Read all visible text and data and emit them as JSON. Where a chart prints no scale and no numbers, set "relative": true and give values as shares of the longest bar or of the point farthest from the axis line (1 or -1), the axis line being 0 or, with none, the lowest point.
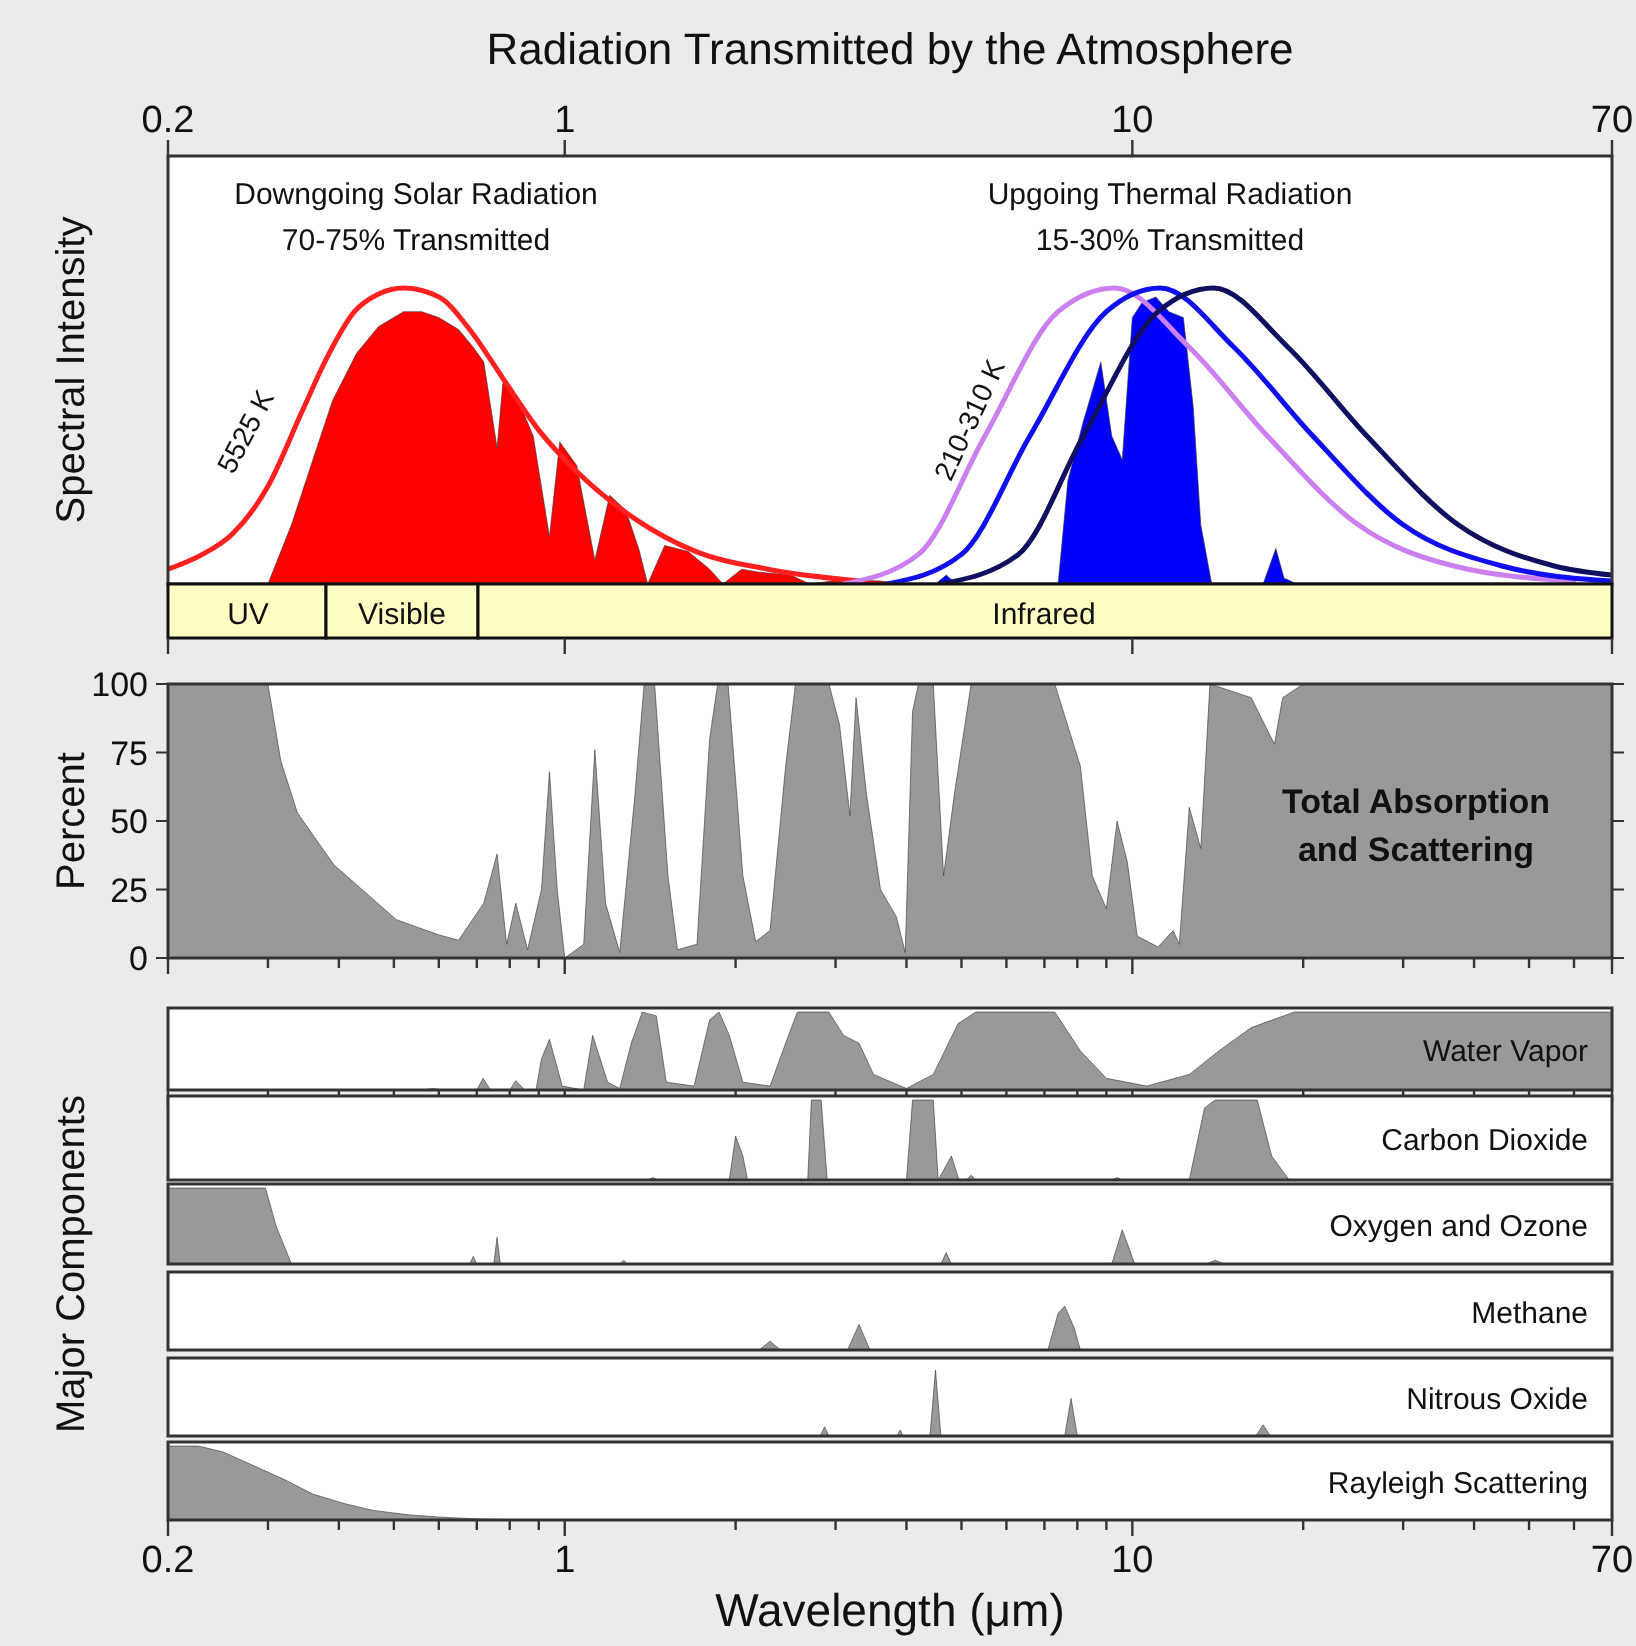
{
  "chart_data": [
    {
      "type": "area",
      "title": "Radiation Transmitted by the Atmosphere",
      "ylabel": "Spectral Intensity",
      "relative": true,
      "log": "x",
      "xlim": [
        0.2,
        70
      ],
      "tick_labels": "x",
      "xticks": [
        0.2,
        1,
        10,
        70
      ],
      "annotations": [
        "Downgoing Solar Radiation",
        "70-75% Transmitted",
        "Upgoing Thermal Radiation",
        "15-30% Transmitted",
        "5525 K",
        "210-310 K",
        "UV",
        "Visible",
        "Infrared"
      ],
      "series": [
        {
          "type": "area",
          "color": "#ff0000",
          "x": [
            0.3,
            0.33,
            0.36,
            0.39,
            0.43,
            0.47,
            0.52,
            0.56,
            0.6,
            0.65,
            0.69,
            0.72,
            0.76,
            0.78,
            0.82,
            0.88,
            0.94,
            0.98,
            1.05,
            1.13,
            1.2,
            1.28,
            1.35,
            1.4,
            1.5,
            1.65,
            1.8,
            1.9,
            2.05,
            2.2,
            2.5,
            2.7,
            3.1,
            3.6,
            4.0
          ],
          "values": [
            0,
            0.2,
            0.42,
            0.62,
            0.78,
            0.87,
            0.92,
            0.92,
            0.9,
            0.86,
            0.8,
            0.75,
            0.46,
            0.7,
            0.64,
            0.5,
            0.16,
            0.48,
            0.4,
            0.08,
            0.3,
            0.25,
            0.12,
            0,
            0.13,
            0.11,
            0.05,
            0,
            0.05,
            0.04,
            0.03,
            0,
            0.015,
            0.01,
            0
          ]
        },
        {
          "type": "line",
          "color": "#ff2020",
          "x": [
            0.2,
            0.23,
            0.26,
            0.3,
            0.344,
            0.38,
            0.426,
            0.47,
            0.52,
            0.6,
            0.68,
            0.775,
            0.9,
            1.05,
            1.33,
            1.7,
            2.28,
            3.3
          ],
          "values": [
            0.05,
            0.1,
            0.17,
            0.33,
            0.58,
            0.76,
            0.92,
            0.98,
            1.0,
            0.97,
            0.86,
            0.7,
            0.52,
            0.38,
            0.22,
            0.11,
            0.05,
            0.01
          ]
        },
        {
          "type": "area",
          "color": "#0000ff",
          "x": [
            4.5,
            4.7,
            4.9,
            7.4,
            7.7,
            8.2,
            8.8,
            9.2,
            9.6,
            10.0,
            10.4,
            11.0,
            11.6,
            12.3,
            12.8,
            13.2,
            13.8,
            17.0,
            17.9,
            18.5,
            19.5
          ],
          "values": [
            0,
            0.03,
            0,
            0,
            0.35,
            0.55,
            0.75,
            0.5,
            0.42,
            0.9,
            0.95,
            0.97,
            0.92,
            0.9,
            0.6,
            0.2,
            0,
            0,
            0.12,
            0.02,
            0
          ]
        },
        {
          "type": "line",
          "color": "#cc80f0",
          "x": [
            3.1,
            4.2,
            5.5,
            7.4,
            9.3,
            12.6,
            17.3,
            25,
            37,
            60
          ],
          "values": [
            0,
            0.1,
            0.5,
            0.92,
            1,
            0.8,
            0.5,
            0.2,
            0.06,
            0.01
          ]
        },
        {
          "type": "line",
          "color": "#1010ee",
          "x": [
            3.7,
            5,
            6.6,
            9,
            11.2,
            15.1,
            20.8,
            30,
            45,
            70
          ],
          "values": [
            0,
            0.1,
            0.5,
            0.92,
            1,
            0.8,
            0.5,
            0.2,
            0.06,
            0.01
          ]
        },
        {
          "type": "line",
          "color": "#101060",
          "x": [
            4.6,
            6.3,
            8.2,
            11.1,
            13.9,
            18.8,
            25.9,
            37.5,
            55.6,
            70
          ],
          "values": [
            0,
            0.1,
            0.5,
            0.92,
            1,
            0.8,
            0.5,
            0.2,
            0.06,
            0.03
          ]
        }
      ]
    },
    {
      "type": "area",
      "ylabel": "Percent",
      "log": "x",
      "xlim": [
        0.2,
        70
      ],
      "tick_labels": "y",
      "ylim": [
        0,
        100
      ],
      "yticks": [
        0,
        25,
        50,
        75,
        100
      ],
      "color": "#999999",
      "xticks": [
        0.2,
        {
          "value": 0.3,
          "label": null
        },
        {
          "value": 0.4,
          "label": null
        },
        {
          "value": 0.5,
          "label": null
        },
        {
          "value": 0.6,
          "label": null
        },
        {
          "value": 0.7,
          "label": null
        },
        {
          "value": 0.8,
          "label": null
        },
        {
          "value": 0.9,
          "label": null
        },
        1,
        {
          "value": 2,
          "label": null
        },
        {
          "value": 3,
          "label": null
        },
        {
          "value": 4,
          "label": null
        },
        {
          "value": 5,
          "label": null
        },
        {
          "value": 6,
          "label": null
        },
        {
          "value": 7,
          "label": null
        },
        {
          "value": 8,
          "label": null
        },
        {
          "value": 9,
          "label": null
        },
        10,
        {
          "value": 20,
          "label": null
        },
        {
          "value": 30,
          "label": null
        },
        {
          "value": 40,
          "label": null
        },
        {
          "value": 50,
          "label": null
        },
        {
          "value": 60,
          "label": null
        },
        70
      ],
      "annotations": [
        "Total Absorption and Scattering"
      ],
      "x": [
        0.2,
        0.3,
        0.316,
        0.338,
        0.392,
        0.505,
        0.599,
        0.65,
        0.72,
        0.76,
        0.79,
        0.82,
        0.86,
        0.91,
        0.94,
        0.97,
        1.0,
        1.08,
        1.13,
        1.18,
        1.25,
        1.33,
        1.38,
        1.44,
        1.52,
        1.58,
        1.71,
        1.8,
        1.86,
        1.94,
        2.0,
        2.06,
        2.17,
        2.3,
        2.45,
        2.55,
        2.92,
        3.05,
        3.18,
        3.26,
        3.4,
        3.6,
        3.84,
        3.98,
        4.1,
        4.2,
        4.46,
        4.65,
        4.86,
        5.2,
        7.3,
        8.1,
        8.5,
        9.0,
        9.4,
        9.8,
        10.2,
        11.1,
        11.8,
        12.1,
        12.6,
        13.2,
        13.7,
        16.2,
        17.8,
        18.4,
        20,
        70
      ],
      "values": [
        100,
        100,
        72,
        53,
        34,
        14,
        8.5,
        6.5,
        20,
        38,
        5,
        20,
        3,
        25,
        68,
        25,
        0,
        5,
        76,
        20,
        2,
        60,
        100,
        100,
        30,
        3,
        5,
        80,
        100,
        100,
        65,
        30,
        6,
        10,
        70,
        100,
        100,
        85,
        52,
        95,
        60,
        25,
        15,
        2,
        90,
        100,
        100,
        30,
        60,
        100,
        100,
        70,
        30,
        18,
        50,
        35,
        8,
        4,
        10,
        5,
        55,
        40,
        100,
        95,
        78,
        95,
        100,
        100
      ]
    },
    {
      "type": "area",
      "ylabel": "Major Components",
      "relative": true,
      "log": "x",
      "xlim": [
        0.2,
        70
      ],
      "tick_labels": false,
      "xticks": [
        0.2,
        {
          "value": 0.3,
          "label": null
        },
        {
          "value": 0.4,
          "label": null
        },
        {
          "value": 0.5,
          "label": null
        },
        {
          "value": 0.6,
          "label": null
        },
        {
          "value": 0.7,
          "label": null
        },
        {
          "value": 0.8,
          "label": null
        },
        {
          "value": 0.9,
          "label": null
        },
        1,
        {
          "value": 2,
          "label": null
        },
        {
          "value": 3,
          "label": null
        },
        {
          "value": 4,
          "label": null
        },
        {
          "value": 5,
          "label": null
        },
        {
          "value": 6,
          "label": null
        },
        {
          "value": 7,
          "label": null
        },
        {
          "value": 8,
          "label": null
        },
        {
          "value": 9,
          "label": null
        },
        10,
        {
          "value": 20,
          "label": null
        },
        {
          "value": 30,
          "label": null
        },
        {
          "value": 40,
          "label": null
        },
        {
          "value": 50,
          "label": null
        },
        {
          "value": 60,
          "label": null
        },
        70
      ],
      "series": [
        {
          "name": "Water Vapor",
          "color": "#999999",
          "x": [
            0.2,
            0.56,
            0.586,
            0.61,
            0.7,
            0.718,
            0.74,
            0.8,
            0.82,
            0.85,
            0.89,
            0.91,
            0.94,
            0.99,
            1.08,
            1.12,
            1.19,
            1.25,
            1.31,
            1.37,
            1.45,
            1.51,
            1.69,
            1.8,
            1.87,
            1.95,
            2.06,
            2.3,
            2.45,
            2.57,
            2.92,
            3.1,
            3.3,
            3.5,
            4.0,
            4.46,
            4.93,
            5.3,
            7.3,
            8.1,
            9.0,
            10.6,
            12.6,
            14.2,
            16.2,
            19.3,
            70
          ],
          "values": [
            0,
            0,
            0.02,
            0,
            0,
            0.15,
            0,
            0,
            0.12,
            0,
            0,
            0.4,
            0.65,
            0.05,
            0,
            0.7,
            0.1,
            0.02,
            0.6,
            1,
            0.95,
            0.1,
            0.05,
            0.9,
            1,
            0.7,
            0.1,
            0.05,
            0.6,
            1,
            1,
            0.7,
            0.6,
            0.2,
            0.02,
            0.2,
            0.85,
            1,
            1,
            0.5,
            0.15,
            0.05,
            0.2,
            0.5,
            0.8,
            1,
            1
          ]
        }
      ]
    },
    {
      "type": "area",
      "relative": true,
      "log": "x",
      "xlim": [
        0.2,
        70
      ],
      "tick_labels": false,
      "series": [
        {
          "name": "Carbon Dioxide",
          "color": "#999999",
          "x": [
            0.2,
            1.4,
            1.43,
            1.46,
            1.95,
            2.0,
            2.06,
            2.1,
            2.68,
            2.72,
            2.83,
            2.9,
            4.0,
            4.1,
            4.46,
            4.55,
            4.8,
            4.95,
            5.1,
            5.2,
            5.3,
            9.2,
            9.4,
            9.6,
            12.6,
            13.4,
            14.0,
            16.6,
            17.6,
            18.9,
            70
          ],
          "values": [
            0,
            0,
            0.03,
            0,
            0,
            0.55,
            0.3,
            0,
            0,
            1,
            1,
            0,
            0,
            1,
            1,
            0,
            0.3,
            0,
            0,
            0.06,
            0,
            0,
            0.03,
            0,
            0,
            0.9,
            1,
            1,
            0.3,
            0,
            0
          ]
        }
      ]
    },
    {
      "type": "area",
      "relative": true,
      "log": "x",
      "xlim": [
        0.2,
        70
      ],
      "tick_labels": false,
      "series": [
        {
          "name": "Oxygen and Ozone",
          "color": "#999999",
          "x": [
            0.2,
            0.297,
            0.31,
            0.33,
            0.68,
            0.69,
            0.7,
            0.75,
            0.76,
            0.77,
            1.25,
            1.27,
            1.29,
            4.6,
            4.7,
            4.8,
            9.2,
            9.6,
            10.1,
            13.5,
            14.0,
            14.5,
            70
          ],
          "values": [
            1,
            1,
            0.5,
            0,
            0,
            0.1,
            0,
            0,
            0.35,
            0,
            0,
            0.05,
            0,
            0,
            0.15,
            0,
            0,
            0.45,
            0,
            0,
            0.05,
            0,
            0
          ]
        }
      ]
    },
    {
      "type": "area",
      "relative": true,
      "log": "x",
      "xlim": [
        0.2,
        70
      ],
      "tick_labels": false,
      "series": [
        {
          "name": "Methane",
          "color": "#999999",
          "x": [
            0.2,
            2.2,
            2.3,
            2.4,
            3.15,
            3.3,
            3.45,
            7.1,
            7.4,
            7.6,
            7.9,
            8.1,
            70
          ],
          "values": [
            0,
            0,
            0.2,
            0,
            0,
            0.58,
            0,
            0,
            0.83,
            1,
            0.5,
            0,
            0
          ]
        }
      ]
    },
    {
      "type": "area",
      "relative": true,
      "log": "x",
      "xlim": [
        0.2,
        70
      ],
      "tick_labels": false,
      "series": [
        {
          "name": "Nitrous Oxide",
          "color": "#999999",
          "x": [
            0.2,
            2.82,
            2.87,
            2.92,
            3.85,
            3.9,
            3.95,
            4.4,
            4.5,
            4.6,
            7.6,
            7.8,
            8.0,
            16.5,
            17.0,
            17.5,
            70
          ],
          "values": [
            0,
            0,
            0.14,
            0,
            0,
            0.09,
            0,
            0,
            1,
            0,
            0,
            0.57,
            0,
            0,
            0.17,
            0,
            0
          ]
        }
      ]
    },
    {
      "type": "area",
      "xlabel": "Wavelength (μm)",
      "relative": true,
      "log": "x",
      "xlim": [
        0.2,
        70
      ],
      "tick_labels": "x",
      "xticks": [
        0.2,
        {
          "value": 0.3,
          "label": null
        },
        {
          "value": 0.4,
          "label": null
        },
        {
          "value": 0.5,
          "label": null
        },
        {
          "value": 0.6,
          "label": null
        },
        {
          "value": 0.7,
          "label": null
        },
        {
          "value": 0.8,
          "label": null
        },
        {
          "value": 0.9,
          "label": null
        },
        1,
        {
          "value": 2,
          "label": null
        },
        {
          "value": 3,
          "label": null
        },
        {
          "value": 4,
          "label": null
        },
        {
          "value": 5,
          "label": null
        },
        {
          "value": 6,
          "label": null
        },
        {
          "value": 7,
          "label": null
        },
        {
          "value": 8,
          "label": null
        },
        {
          "value": 9,
          "label": null
        },
        10,
        {
          "value": 20,
          "label": null
        },
        {
          "value": 30,
          "label": null
        },
        {
          "value": 40,
          "label": null
        },
        {
          "value": 50,
          "label": null
        },
        {
          "value": 60,
          "label": null
        },
        70
      ],
      "series": [
        {
          "name": "Rayleigh Scattering",
          "color": "#999999",
          "x": [
            0.2,
            0.226,
            0.25,
            0.28,
            0.32,
            0.36,
            0.41,
            0.46,
            0.53,
            0.6,
            0.7,
            0.8,
            1,
            70
          ],
          "values": [
            1,
            1,
            0.92,
            0.75,
            0.55,
            0.35,
            0.22,
            0.13,
            0.07,
            0.04,
            0.015,
            0.005,
            0,
            0
          ]
        }
      ]
    }
  ]
}
